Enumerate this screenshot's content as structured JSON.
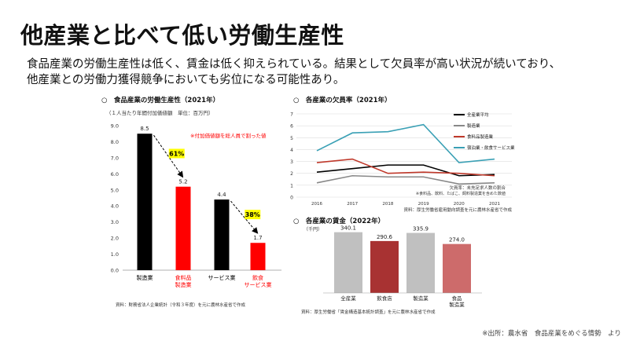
{
  "slide": {
    "title": "他産業と比べて低い労働生産性",
    "subtitle_lines": [
      "食品産業の労働生産性は低く、賃金は低く抑えられている。結果として欠員率が高い状況が続いており、",
      "他産業との労働力獲得競争においても劣位になる可能性あり。"
    ],
    "footer": "※出所：農水省　食品産業をめぐる情勢　より"
  },
  "chart_data": [
    {
      "type": "bar",
      "title": "○　食品産業の労働生産性（2021年）",
      "subtitle": "（１人当たり年間付加価値額　単位：百万円）",
      "categories": [
        "製造業",
        "食料品\n製造業",
        "サービス業",
        "飲食\nサービス業"
      ],
      "values": [
        8.5,
        5.2,
        4.4,
        1.7
      ],
      "value_labels": [
        "8.5",
        "5.2",
        "4.4",
        "1.7"
      ],
      "colors": [
        "#000000",
        "#ff0000",
        "#000000",
        "#ff0000"
      ],
      "category_colors": [
        "#000000",
        "#ff0000",
        "#000000",
        "#ff0000"
      ],
      "ylim": [
        0,
        9
      ],
      "yticks": [
        "0.0",
        "1.0",
        "2.0",
        "3.0",
        "4.0",
        "5.0",
        "6.0",
        "7.0",
        "8.0",
        "9.0"
      ],
      "annotation": "※付加価値額を総人員で割った値",
      "ratio_labels": [
        "61%",
        "38%"
      ],
      "source": "資料：財務省法人企業統計（令和３年度）を元に農林水産省で作成"
    },
    {
      "type": "line",
      "title": "○　各産業の欠員率（2021年）",
      "x": [
        "2016",
        "2017",
        "2018",
        "2019",
        "2020",
        "2021"
      ],
      "ylim": [
        0,
        7
      ],
      "yticks": [
        "0",
        "1",
        "2",
        "3",
        "4",
        "5",
        "6",
        "7"
      ],
      "series": [
        {
          "name": "全産業平均",
          "color": "#000000",
          "values": [
            2.1,
            2.4,
            2.7,
            2.7,
            1.8,
            1.9
          ]
        },
        {
          "name": "製造業",
          "color": "#888888",
          "values": [
            1.2,
            1.8,
            1.7,
            1.7,
            1.1,
            1.2
          ]
        },
        {
          "name": "食料品製造業",
          "color": "#c0392b",
          "values": [
            2.9,
            3.2,
            2.0,
            2.1,
            2.0,
            1.8
          ]
        },
        {
          "name": "宿泊業・飲食サービス業",
          "color": "#3aa0b5",
          "values": [
            3.9,
            5.4,
            5.5,
            6.1,
            2.9,
            3.2
          ]
        }
      ],
      "notes": [
        "欠員率：未充足求人数の割合",
        "※食料品、飲料、たばこ、飼料製造業を含めた数値"
      ],
      "source": "資料：厚生労働省雇用動向調査を元に農林水産省で作成"
    },
    {
      "type": "bar",
      "title": "○　各産業の賃金（2022年）",
      "unit": "（千円）",
      "categories": [
        "全産業",
        "飲食店",
        "製造業",
        "食品\n製造業"
      ],
      "values": [
        340.1,
        290.6,
        335.9,
        274.0
      ],
      "value_labels": [
        "340.1",
        "290.6",
        "335.9",
        "274.0"
      ],
      "colors": [
        "#c0c0c0",
        "#a83232",
        "#c0c0c0",
        "#cd6b6b"
      ],
      "ylim": [
        0,
        400
      ],
      "source": "資料：厚生労働省「賃金構造基本統計調査」を元に農林水産省で作成"
    }
  ]
}
